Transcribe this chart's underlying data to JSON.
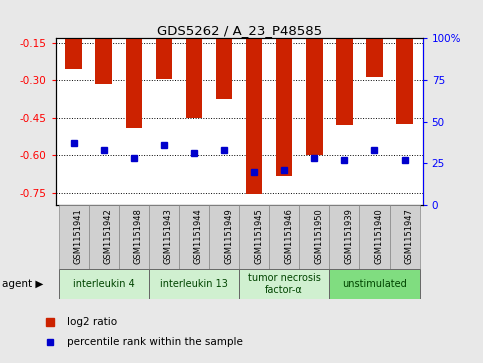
{
  "title": "GDS5262 / A_23_P48585",
  "samples": [
    "GSM1151941",
    "GSM1151942",
    "GSM1151948",
    "GSM1151943",
    "GSM1151944",
    "GSM1151949",
    "GSM1151945",
    "GSM1151946",
    "GSM1151950",
    "GSM1151939",
    "GSM1151940",
    "GSM1151947"
  ],
  "log2_ratio": [
    -0.255,
    -0.315,
    -0.49,
    -0.295,
    -0.45,
    -0.375,
    -0.755,
    -0.685,
    -0.6,
    -0.48,
    -0.285,
    -0.475
  ],
  "percentile": [
    37,
    33,
    28,
    36,
    31,
    33,
    20,
    21,
    28,
    27,
    33,
    27
  ],
  "agents": [
    {
      "label": "interleukin 4",
      "start": 0,
      "end": 3,
      "color": "#d0f0d0"
    },
    {
      "label": "interleukin 13",
      "start": 3,
      "end": 6,
      "color": "#d0f0d0"
    },
    {
      "label": "tumor necrosis\nfactor-α",
      "start": 6,
      "end": 9,
      "color": "#d0f0d0"
    },
    {
      "label": "unstimulated",
      "start": 9,
      "end": 12,
      "color": "#80dd80"
    }
  ],
  "ylim": [
    -0.8,
    -0.13
  ],
  "yticks": [
    -0.75,
    -0.6,
    -0.45,
    -0.3,
    -0.15
  ],
  "ytick_labels": [
    "-0.75",
    "-0.60",
    "-0.45",
    "-0.30",
    "-0.15"
  ],
  "y2lim": [
    0,
    100
  ],
  "y2ticks": [
    0,
    25,
    50,
    75,
    100
  ],
  "y2tick_labels": [
    "0",
    "25",
    "50",
    "75",
    "100%"
  ],
  "bar_color": "#cc2200",
  "dot_color": "#0000cc",
  "bg_color": "#ffffff",
  "label_bg_color": "#d0d0d0",
  "fig_bg_color": "#e8e8e8",
  "bar_width": 0.55
}
